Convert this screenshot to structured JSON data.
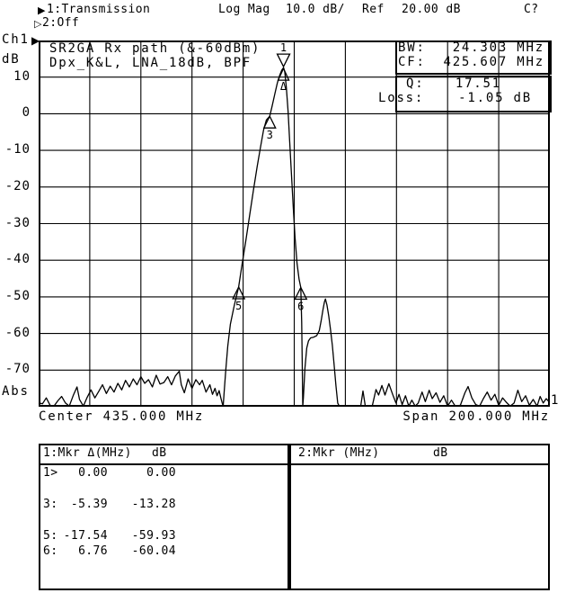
{
  "header": {
    "ch1_icon": "▶",
    "ch1_trace": "1:Transmission",
    "format": "Log Mag",
    "scale": "10.0 dB/",
    "ref_label": "Ref",
    "ref_value": "20.00 dB",
    "cal_status": "C?",
    "ch2_icon": "▷",
    "ch2_trace": "2:Off"
  },
  "axis": {
    "channel": "Ch1",
    "channel_pointer": "▶",
    "unit": "dB",
    "bottom_unit": "Abs",
    "center_label": "Center 435.000 MHz",
    "span_label": "Span 200.000 MHz",
    "y_ticks": [
      "10",
      "0",
      "-10",
      "-20",
      "-30",
      "-40",
      "-50",
      "-60",
      "-70"
    ]
  },
  "annotations": {
    "line1": "SR2GA Rx path (&-60dBm)",
    "line2": "Dpx_K&L, LNA_18dB, BPF"
  },
  "readouts": {
    "bw_label": "BW:",
    "bw_value": "24.303 MHz",
    "cf_label": "CF:",
    "cf_value": "425.607 MHz",
    "q_label": "Q:",
    "q_value": "17.51",
    "loss_label": "Loss:",
    "loss_value": "-1.05 dB"
  },
  "marker_table_1": {
    "header_left": "1:Mkr Δ(MHz)",
    "header_right": "dB",
    "rows": [
      {
        "id": "1>",
        "freq": "0.00",
        "db": "0.00",
        "slot": 0
      },
      {
        "id": "3:",
        "freq": "-5.39",
        "db": "-13.28",
        "slot": 2
      },
      {
        "id": "5:",
        "freq": "-17.54",
        "db": "-59.93",
        "slot": 4
      },
      {
        "id": "6:",
        "freq": "6.76",
        "db": "-60.04",
        "slot": 5
      }
    ]
  },
  "marker_table_2": {
    "header_left": "2:Mkr (MHz)",
    "header_right": "dB"
  },
  "chart_data": {
    "type": "line",
    "title": "Ch1 Transmission Log Mag",
    "x_start_mhz": 335,
    "x_stop_mhz": 535,
    "center_mhz": 435,
    "span_mhz": 200,
    "ref_db": 20,
    "scale_db_per_div": 10,
    "ymax_db": 20,
    "ymin_db": -80,
    "divisions": 10,
    "grid": true,
    "trace_end_label": "1",
    "markers": [
      {
        "id": "1",
        "style": "active_delta_ref",
        "ref_symbol": "Δ",
        "mhz": 430.8,
        "db": 12.6
      },
      {
        "id": "3",
        "style": "normal",
        "mhz": 425.41,
        "db": -0.68
      },
      {
        "id": "5",
        "style": "normal",
        "mhz": 413.26,
        "db": -47.33
      },
      {
        "id": "6",
        "style": "normal",
        "mhz": 437.56,
        "db": -47.44
      }
    ],
    "trace": [
      [
        335,
        -79
      ],
      [
        336.5,
        -79.2
      ],
      [
        338,
        -77.6
      ],
      [
        339.5,
        -79.6
      ],
      [
        341,
        -80.4
      ],
      [
        342.5,
        -78.4
      ],
      [
        344,
        -77.2
      ],
      [
        345.5,
        -79
      ],
      [
        347,
        -80.2
      ],
      [
        348.5,
        -77
      ],
      [
        350,
        -74.6
      ],
      [
        351,
        -78
      ],
      [
        352.5,
        -80
      ],
      [
        354,
        -77.4
      ],
      [
        355.5,
        -75.4
      ],
      [
        357,
        -77.6
      ],
      [
        358.5,
        -75.8
      ],
      [
        360,
        -74
      ],
      [
        361.5,
        -76.4
      ],
      [
        363,
        -74.4
      ],
      [
        364.5,
        -76
      ],
      [
        366,
        -73.6
      ],
      [
        367.5,
        -75.4
      ],
      [
        369,
        -72.8
      ],
      [
        370.5,
        -74.6
      ],
      [
        372,
        -72.4
      ],
      [
        373.5,
        -74
      ],
      [
        375,
        -71.8
      ],
      [
        376.5,
        -73.6
      ],
      [
        378,
        -72.6
      ],
      [
        379.5,
        -74.6
      ],
      [
        381,
        -71.4
      ],
      [
        382.5,
        -73.8
      ],
      [
        384,
        -73.4
      ],
      [
        385.5,
        -71.8
      ],
      [
        387,
        -74
      ],
      [
        388.5,
        -71.6
      ],
      [
        390,
        -70.3
      ],
      [
        390.8,
        -74
      ],
      [
        392,
        -76.2
      ],
      [
        393.5,
        -72.4
      ],
      [
        395,
        -75
      ],
      [
        396.5,
        -72.6
      ],
      [
        398,
        -74
      ],
      [
        399,
        -72.8
      ],
      [
        400.5,
        -76
      ],
      [
        402,
        -74
      ],
      [
        403,
        -76.6
      ],
      [
        404,
        -75
      ],
      [
        404.8,
        -77
      ],
      [
        405.6,
        -75.6
      ],
      [
        406.3,
        -77.6
      ],
      [
        406.8,
        -79
      ],
      [
        407.2,
        -80
      ],
      [
        407.6,
        -76
      ],
      [
        408.2,
        -70
      ],
      [
        409,
        -63.5
      ],
      [
        410,
        -57.5
      ],
      [
        411.5,
        -52.5
      ],
      [
        413.26,
        -47.33
      ],
      [
        414.5,
        -41.5
      ],
      [
        416,
        -35
      ],
      [
        417.5,
        -28
      ],
      [
        419,
        -21
      ],
      [
        420.5,
        -14.5
      ],
      [
        421.8,
        -9.2
      ],
      [
        423,
        -4.4
      ],
      [
        424.1,
        -1.7
      ],
      [
        425.41,
        -0.68
      ],
      [
        426.3,
        1.9
      ],
      [
        427.4,
        5.4
      ],
      [
        428.4,
        8.4
      ],
      [
        429.3,
        10.5
      ],
      [
        430.1,
        11.9
      ],
      [
        430.8,
        12.6
      ],
      [
        431.3,
        11.4
      ],
      [
        431.9,
        7.2
      ],
      [
        432.6,
        0.5
      ],
      [
        433.2,
        -7.5
      ],
      [
        433.9,
        -16.5
      ],
      [
        434.6,
        -25.5
      ],
      [
        435.3,
        -33.8
      ],
      [
        436.1,
        -40.8
      ],
      [
        436.9,
        -45.2
      ],
      [
        437.56,
        -47.44
      ],
      [
        437.9,
        -57
      ],
      [
        438.15,
        -70
      ],
      [
        438.35,
        -80.2
      ],
      [
        438.6,
        -77.5
      ],
      [
        439.2,
        -69.5
      ],
      [
        439.9,
        -64
      ],
      [
        440.6,
        -62
      ],
      [
        441.4,
        -61.2
      ],
      [
        442.6,
        -61
      ],
      [
        443.8,
        -60.6
      ],
      [
        444.8,
        -59.2
      ],
      [
        445.5,
        -56.6
      ],
      [
        446.2,
        -53.6
      ],
      [
        446.8,
        -51.4
      ],
      [
        447.2,
        -50.6
      ],
      [
        447.8,
        -52.2
      ],
      [
        448.5,
        -55.2
      ],
      [
        449.2,
        -59
      ],
      [
        449.9,
        -63.2
      ],
      [
        450.6,
        -68.6
      ],
      [
        451.3,
        -74.2
      ],
      [
        452,
        -79
      ],
      [
        452.6,
        -80.3
      ],
      [
        454,
        -80.3
      ],
      [
        456,
        -80.1
      ],
      [
        458,
        -80.3
      ],
      [
        460.3,
        -80.3
      ],
      [
        461,
        -79.8
      ],
      [
        461.9,
        -75.7
      ],
      [
        462.8,
        -80
      ],
      [
        464,
        -80.3
      ],
      [
        465.5,
        -80
      ],
      [
        467,
        -75.3
      ],
      [
        468,
        -76.8
      ],
      [
        469.3,
        -74.2
      ],
      [
        470.5,
        -76.8
      ],
      [
        472,
        -73.7
      ],
      [
        473.5,
        -76.6
      ],
      [
        474.8,
        -79
      ],
      [
        476,
        -76.6
      ],
      [
        477.2,
        -79.4
      ],
      [
        478.5,
        -77
      ],
      [
        479.8,
        -80
      ],
      [
        481,
        -78.2
      ],
      [
        482.3,
        -80.3
      ],
      [
        483.5,
        -79
      ],
      [
        485,
        -76
      ],
      [
        486.3,
        -78.6
      ],
      [
        487.8,
        -75.5
      ],
      [
        489,
        -77.8
      ],
      [
        490.5,
        -76.2
      ],
      [
        492,
        -78.8
      ],
      [
        493.5,
        -77
      ],
      [
        495,
        -80
      ],
      [
        496.5,
        -78.2
      ],
      [
        498,
        -80.3
      ],
      [
        500,
        -79.6
      ],
      [
        501.8,
        -76.2
      ],
      [
        503,
        -74.5
      ],
      [
        504.5,
        -77.6
      ],
      [
        506,
        -79.4
      ],
      [
        507.5,
        -80
      ],
      [
        509,
        -77.8
      ],
      [
        510.5,
        -76
      ],
      [
        512,
        -78.2
      ],
      [
        513.5,
        -76.6
      ],
      [
        515,
        -79.6
      ],
      [
        516.5,
        -77.6
      ],
      [
        518,
        -78.8
      ],
      [
        519.5,
        -80
      ],
      [
        521,
        -79
      ],
      [
        522.5,
        -75.5
      ],
      [
        524,
        -78.6
      ],
      [
        525.5,
        -77
      ],
      [
        527,
        -79.6
      ],
      [
        528.5,
        -78
      ],
      [
        530,
        -80
      ],
      [
        531.2,
        -77.2
      ],
      [
        532.4,
        -79
      ],
      [
        533.6,
        -77.8
      ],
      [
        534.6,
        -78.6
      ],
      [
        535,
        -78.4
      ]
    ]
  }
}
